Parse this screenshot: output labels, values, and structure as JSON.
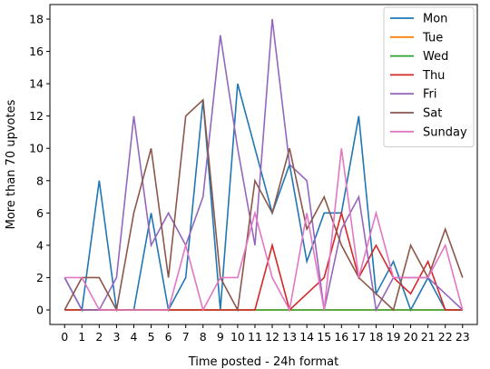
{
  "chart_data": {
    "type": "line",
    "xlabel": "Time posted - 24h format",
    "ylabel": "More than 70 upvotes",
    "x": [
      0,
      1,
      2,
      3,
      4,
      5,
      6,
      7,
      8,
      9,
      10,
      11,
      12,
      13,
      14,
      15,
      16,
      17,
      18,
      19,
      20,
      21,
      22,
      23
    ],
    "xticks": [
      "0",
      "1",
      "2",
      "3",
      "4",
      "5",
      "6",
      "7",
      "8",
      "9",
      "10",
      "11",
      "12",
      "13",
      "14",
      "15",
      "16",
      "17",
      "18",
      "19",
      "20",
      "21",
      "22",
      "23"
    ],
    "ylim": [
      -0.9,
      18.9
    ],
    "yticks": [
      "0",
      "2",
      "4",
      "6",
      "8",
      "10",
      "12",
      "14",
      "16",
      "18"
    ],
    "ytick_values": [
      0,
      2,
      4,
      6,
      8,
      10,
      12,
      14,
      16,
      18
    ],
    "grid": false,
    "legend_position": "top-right",
    "series": [
      {
        "name": "Mon",
        "color": "#1f77b4",
        "values": [
          2,
          0,
          8,
          0,
          0,
          6,
          0,
          2,
          13,
          0,
          14,
          10,
          6,
          9,
          3,
          6,
          6,
          12,
          1,
          3,
          0,
          2,
          0,
          0
        ]
      },
      {
        "name": "Tue",
        "color": "#ff7f0e",
        "values": [
          0,
          0,
          0,
          0,
          0,
          0,
          0,
          0,
          0,
          0,
          0,
          0,
          0,
          0,
          0,
          0,
          0,
          0,
          0,
          0,
          0,
          0,
          0,
          0
        ]
      },
      {
        "name": "Wed",
        "color": "#2ca02c",
        "values": [
          0,
          0,
          0,
          0,
          0,
          0,
          0,
          0,
          0,
          0,
          0,
          0,
          0,
          0,
          0,
          0,
          0,
          0,
          0,
          0,
          0,
          0,
          0,
          0
        ]
      },
      {
        "name": "Thu",
        "color": "#d62728",
        "values": [
          0,
          0,
          0,
          0,
          0,
          0,
          0,
          0,
          0,
          0,
          0,
          0,
          4,
          0,
          1,
          2,
          6,
          2,
          4,
          2,
          1,
          3,
          0,
          0
        ]
      },
      {
        "name": "Fri",
        "color": "#9467bd",
        "values": [
          2,
          0,
          0,
          2,
          12,
          4,
          6,
          4,
          7,
          17,
          10,
          4,
          18,
          9,
          8,
          0,
          5,
          7,
          0,
          2,
          2,
          2,
          1,
          0
        ]
      },
      {
        "name": "Sat",
        "color": "#8c564b",
        "values": [
          0,
          2,
          2,
          0,
          6,
          10,
          2,
          12,
          13,
          2,
          0,
          8,
          6,
          10,
          5,
          7,
          4,
          2,
          1,
          0,
          4,
          2,
          5,
          2
        ]
      },
      {
        "name": "Sunday",
        "color": "#e377c2",
        "values": [
          2,
          2,
          0,
          0,
          0,
          0,
          0,
          4,
          0,
          2,
          2,
          6,
          2,
          0,
          6,
          0,
          10,
          2,
          6,
          2,
          2,
          2,
          4,
          0
        ]
      }
    ]
  }
}
